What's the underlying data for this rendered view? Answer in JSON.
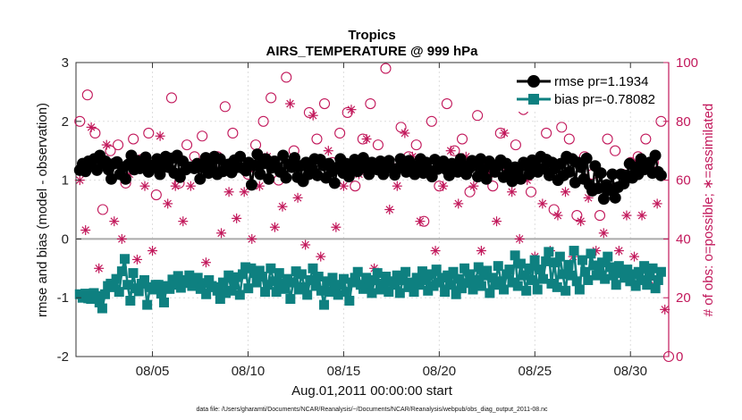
{
  "chart_data": {
    "type": "line",
    "title": "Tropics",
    "subtitle": "AIRS_TEMPERATURE @ 999 hPa",
    "xlabel": "Aug.01,2011 00:00:00 start",
    "ylabel_left": "rmse and bias (model - observation)",
    "ylabel_right": "# of obs: o=possible; ∗=assimilated",
    "x_tick_labels": [
      "08/05",
      "08/10",
      "08/15",
      "08/20",
      "08/25",
      "08/30"
    ],
    "x_tick_days": [
      5,
      10,
      15,
      20,
      25,
      30
    ],
    "xlim_days": [
      1,
      32
    ],
    "ylim_left": [
      -2,
      3
    ],
    "y_ticks_left": [
      "-2",
      "-1",
      "0",
      "1",
      "2",
      "3"
    ],
    "ylim_right": [
      0,
      100
    ],
    "y_ticks_right": [
      "0",
      "20",
      "40",
      "60",
      "80",
      "100"
    ],
    "series": [
      {
        "name": "rmse pr=1.1934",
        "color": "#000000",
        "marker": "circle",
        "values": [
          1.17,
          1.28,
          1.15,
          1.32,
          1.24,
          1.36,
          1.17,
          1.42,
          1.28,
          1.32,
          1.18,
          1.02,
          1.28,
          1.31,
          1.1,
          1.22,
          1.02,
          1.27,
          1.42,
          1.18,
          1.33,
          1.2,
          1.26,
          1.39,
          1.14,
          1.25,
          1.22,
          1.36,
          1.1,
          1.23,
          1.4,
          1.22,
          1.37,
          1.12,
          1.42,
          1.05,
          1.32,
          1.18,
          1.22,
          1.22,
          1.2,
          1.28,
          1.02,
          1.22,
          1.38,
          1.12,
          1.26,
          1.4,
          1.1,
          1.36,
          1.15,
          1.24,
          1.27,
          1.13,
          1.34,
          1.22,
          1.4,
          1.2,
          1.16,
          1.3,
          0.92,
          1.25,
          1.44,
          1.1,
          1.28,
          1.36,
          1.02,
          1.21,
          1.32,
          1.22,
          1.14,
          1.42,
          1.04,
          1.27,
          1.22,
          1.38,
          1.05,
          1.24,
          0.98,
          1.3,
          1.1,
          1.22,
          1.36,
          1.08,
          1.35,
          1.25,
          1.04,
          1.28,
          1.15,
          0.95,
          1.22,
          1.36,
          1.12,
          1.28,
          1.06,
          1.2,
          1.35,
          1.15,
          1.26,
          1.38,
          1.2,
          1.1,
          1.3,
          1.22,
          1.18,
          1.32,
          1.1,
          1.22,
          1.33,
          1.2,
          1.09,
          1.2,
          1.36,
          1.28,
          1.14,
          1.33,
          1.22,
          1.1,
          1.25,
          1.36,
          1.12,
          1.3,
          1.17,
          1.06,
          1.35,
          1.19,
          1.26,
          1.32,
          1.18,
          1.08,
          1.28,
          1.22,
          1.14,
          1.36,
          1.25,
          1.1,
          1.2,
          1.33,
          1.25,
          1.06,
          1.36,
          1.18,
          1.02,
          1.32,
          1.26,
          1.14,
          1.24,
          1.34,
          1.05,
          1.28,
          1.1,
          0.98,
          1.22,
          1.14,
          1.02,
          1.3,
          1.24,
          1.1,
          1.34,
          1.26,
          1.14,
          1.4,
          1.2,
          1.35,
          1.08,
          1.3,
          1.2,
          1.0,
          1.28,
          1.08,
          1.4,
          1.14,
          1.36,
          0.96,
          1.3,
          1.22,
          1.02,
          1.37,
          0.92,
          0.82,
          1.24,
          0.86,
          1.12,
          0.68,
          0.92,
          0.83,
          1.1,
          0.7,
          0.88,
          1.1,
          0.94,
          1.08,
          1.28,
          1.04,
          1.22,
          1.1,
          1.36,
          1.18,
          1.24,
          1.3,
          1.12,
          1.42,
          1.14,
          1.08
        ]
      },
      {
        "name": "bias pr=-0.78082",
        "color": "#0e8080",
        "marker": "square",
        "values": [
          -0.94,
          -1.0,
          -0.93,
          -1.01,
          -1.02,
          -0.92,
          -0.97,
          -1.08,
          -1.18,
          -0.94,
          -0.8,
          -0.76,
          -0.82,
          -0.68,
          -0.9,
          -0.55,
          -0.34,
          -0.78,
          -1.05,
          -0.58,
          -0.84,
          -0.89,
          -0.76,
          -0.7,
          -1.12,
          -0.82,
          -0.86,
          -0.78,
          -0.78,
          -0.93,
          -1.08,
          -0.8,
          -0.85,
          -0.69,
          -0.78,
          -0.63,
          -0.83,
          -0.7,
          -0.75,
          -0.62,
          -0.8,
          -0.72,
          -0.66,
          -0.85,
          -0.75,
          -0.94,
          -0.7,
          -0.8,
          -0.82,
          -0.88,
          -1.02,
          -0.74,
          -0.92,
          -0.62,
          -0.88,
          -0.78,
          -0.65,
          -0.95,
          -0.6,
          -0.48,
          -0.84,
          -0.5,
          -0.58,
          -0.74,
          -0.54,
          -0.64,
          -0.9,
          -0.78,
          -0.5,
          -0.72,
          -0.9,
          -0.58,
          -0.75,
          -0.85,
          -0.68,
          -1.02,
          -0.74,
          -0.55,
          -0.86,
          -0.6,
          -0.82,
          -0.95,
          -0.7,
          -0.5,
          -0.8,
          -0.64,
          -0.88,
          -1.12,
          -0.72,
          -0.9,
          -0.66,
          -0.82,
          -0.95,
          -0.78,
          -0.68,
          -0.9,
          -1.05,
          -0.74,
          -0.66,
          -0.56,
          -0.78,
          -0.85,
          -0.66,
          -0.8,
          -0.92,
          -0.7,
          -0.58,
          -0.86,
          -0.76,
          -0.64,
          -0.9,
          -0.72,
          -0.78,
          -0.62,
          -0.92,
          -0.7,
          -0.56,
          -0.82,
          -0.74,
          -0.9,
          -0.66,
          -0.78,
          -0.55,
          -0.7,
          -0.88,
          -0.6,
          -0.8,
          -0.52,
          -0.74,
          -0.66,
          -0.9,
          -0.62,
          -0.78,
          -0.56,
          -0.94,
          -0.68,
          -0.84,
          -0.5,
          -0.75,
          -0.6,
          -0.86,
          -0.7,
          -0.48,
          -0.8,
          -0.62,
          -0.54,
          -0.92,
          -0.66,
          -0.78,
          -0.46,
          -0.72,
          -0.86,
          -0.6,
          -0.52,
          -0.74,
          -0.28,
          -0.8,
          -0.42,
          -0.62,
          -0.88,
          -0.5,
          -0.7,
          -0.36,
          -0.86,
          -0.52,
          -0.68,
          -0.38,
          -0.22,
          -0.76,
          -0.4,
          -0.82,
          -0.3,
          -0.6,
          -0.88,
          -0.44,
          -0.62,
          -0.2,
          -0.72,
          -0.86,
          -0.36,
          -0.56,
          -0.7,
          -0.25,
          -0.45,
          -0.62,
          -0.52,
          -0.4,
          -0.68,
          -0.3,
          -0.48,
          -0.62,
          -0.78,
          -0.46,
          -0.58,
          -0.66,
          -0.52,
          -0.72,
          -0.6,
          -0.8,
          -0.56,
          -0.7,
          -0.46,
          -0.78,
          -0.62,
          -0.5,
          -0.84,
          -0.7,
          -0.56
        ]
      },
      {
        "name": "# possible (o)",
        "axis": "right",
        "color": "#c2185b",
        "marker": "open-circle",
        "points": [
          [
            1.2,
            80
          ],
          [
            1.6,
            89
          ],
          [
            2.0,
            76
          ],
          [
            2.4,
            50
          ],
          [
            2.8,
            70
          ],
          [
            3.2,
            72
          ],
          [
            3.6,
            59
          ],
          [
            4.0,
            74
          ],
          [
            4.4,
            67
          ],
          [
            4.8,
            76
          ],
          [
            5.2,
            55
          ],
          [
            5.6,
            65
          ],
          [
            6.0,
            88
          ],
          [
            6.4,
            59
          ],
          [
            6.8,
            72
          ],
          [
            7.2,
            68
          ],
          [
            7.6,
            75
          ],
          [
            8.0,
            64
          ],
          [
            8.4,
            68
          ],
          [
            8.8,
            85
          ],
          [
            9.2,
            76
          ],
          [
            9.6,
            66
          ],
          [
            10.0,
            62
          ],
          [
            10.4,
            72
          ],
          [
            10.8,
            80
          ],
          [
            11.2,
            88
          ],
          [
            11.6,
            60
          ],
          [
            12.0,
            95
          ],
          [
            12.4,
            70
          ],
          [
            12.8,
            62
          ],
          [
            13.2,
            83
          ],
          [
            13.6,
            74
          ],
          [
            14.0,
            86
          ],
          [
            14.4,
            66
          ],
          [
            14.8,
            76
          ],
          [
            15.2,
            83
          ],
          [
            15.6,
            58
          ],
          [
            16.0,
            74
          ],
          [
            16.4,
            86
          ],
          [
            16.8,
            72
          ],
          [
            17.2,
            98
          ],
          [
            17.6,
            64
          ],
          [
            18.0,
            78
          ],
          [
            18.4,
            68
          ],
          [
            18.8,
            72
          ],
          [
            19.2,
            46
          ],
          [
            19.6,
            80
          ],
          [
            20.0,
            58
          ],
          [
            20.4,
            86
          ],
          [
            20.8,
            70
          ],
          [
            21.2,
            74
          ],
          [
            21.6,
            56
          ],
          [
            22.0,
            82
          ],
          [
            22.4,
            64
          ],
          [
            22.8,
            58
          ],
          [
            23.2,
            76
          ],
          [
            23.6,
            64
          ],
          [
            24.0,
            72
          ],
          [
            24.4,
            84
          ],
          [
            24.8,
            56
          ],
          [
            25.2,
            63
          ],
          [
            25.6,
            76
          ],
          [
            26.0,
            50
          ],
          [
            26.4,
            78
          ],
          [
            26.8,
            74
          ],
          [
            27.2,
            48
          ],
          [
            27.6,
            68
          ],
          [
            28.0,
            62
          ],
          [
            28.4,
            48
          ],
          [
            28.8,
            74
          ],
          [
            29.2,
            70
          ],
          [
            29.6,
            62
          ],
          [
            30.0,
            66
          ],
          [
            30.4,
            68
          ],
          [
            30.8,
            74
          ],
          [
            31.2,
            66
          ],
          [
            31.6,
            80
          ],
          [
            32.0,
            0
          ]
        ]
      },
      {
        "name": "# assimilated (∗)",
        "axis": "right",
        "color": "#c2185b",
        "marker": "asterisk",
        "points": [
          [
            1.2,
            60
          ],
          [
            1.5,
            43
          ],
          [
            1.8,
            78
          ],
          [
            2.2,
            30
          ],
          [
            2.6,
            72
          ],
          [
            3.0,
            46
          ],
          [
            3.4,
            40
          ],
          [
            3.8,
            62
          ],
          [
            4.2,
            33
          ],
          [
            4.6,
            58
          ],
          [
            5.0,
            36
          ],
          [
            5.4,
            75
          ],
          [
            5.8,
            52
          ],
          [
            6.2,
            58
          ],
          [
            6.6,
            46
          ],
          [
            7.0,
            58
          ],
          [
            7.4,
            64
          ],
          [
            7.8,
            32
          ],
          [
            8.2,
            66
          ],
          [
            8.6,
            42
          ],
          [
            9.0,
            56
          ],
          [
            9.4,
            47
          ],
          [
            9.8,
            56
          ],
          [
            10.2,
            40
          ],
          [
            10.6,
            58
          ],
          [
            11.0,
            68
          ],
          [
            11.4,
            44
          ],
          [
            11.8,
            51
          ],
          [
            12.2,
            86
          ],
          [
            12.6,
            54
          ],
          [
            13.0,
            38
          ],
          [
            13.4,
            82
          ],
          [
            13.8,
            34
          ],
          [
            14.2,
            70
          ],
          [
            14.6,
            44
          ],
          [
            15.0,
            58
          ],
          [
            15.4,
            84
          ],
          [
            15.8,
            62
          ],
          [
            16.2,
            74
          ],
          [
            16.6,
            30
          ],
          [
            17.0,
            66
          ],
          [
            17.4,
            50
          ],
          [
            17.8,
            58
          ],
          [
            18.2,
            76
          ],
          [
            18.6,
            68
          ],
          [
            19.0,
            46
          ],
          [
            19.4,
            62
          ],
          [
            19.8,
            36
          ],
          [
            20.2,
            58
          ],
          [
            20.6,
            70
          ],
          [
            21.0,
            52
          ],
          [
            21.4,
            68
          ],
          [
            21.8,
            58
          ],
          [
            22.2,
            36
          ],
          [
            22.6,
            62
          ],
          [
            23.0,
            46
          ],
          [
            23.4,
            76
          ],
          [
            23.8,
            56
          ],
          [
            24.2,
            40
          ],
          [
            24.6,
            60
          ],
          [
            25.0,
            34
          ],
          [
            25.4,
            52
          ],
          [
            25.8,
            36
          ],
          [
            26.2,
            48
          ],
          [
            26.6,
            56
          ],
          [
            27.0,
            34
          ],
          [
            27.4,
            46
          ],
          [
            27.8,
            54
          ],
          [
            28.2,
            36
          ],
          [
            28.6,
            42
          ],
          [
            29.0,
            58
          ],
          [
            29.4,
            36
          ],
          [
            29.8,
            48
          ],
          [
            30.2,
            34
          ],
          [
            30.6,
            48
          ],
          [
            31.0,
            26
          ],
          [
            31.4,
            52
          ],
          [
            31.8,
            16
          ]
        ]
      }
    ],
    "legend": [
      {
        "label": "rmse pr=1.1934",
        "color": "#000000",
        "marker": "circle"
      },
      {
        "label": "bias pr=-0.78082",
        "color": "#0e8080",
        "marker": "square"
      }
    ],
    "legend_position": "top-right"
  },
  "footer": "data file: /Users/gharamti/Documents/NCAR/Reanalysis/~/Documents/NCAR/Reanalysis/webpub/obs_diag_output_2011-08.nc"
}
